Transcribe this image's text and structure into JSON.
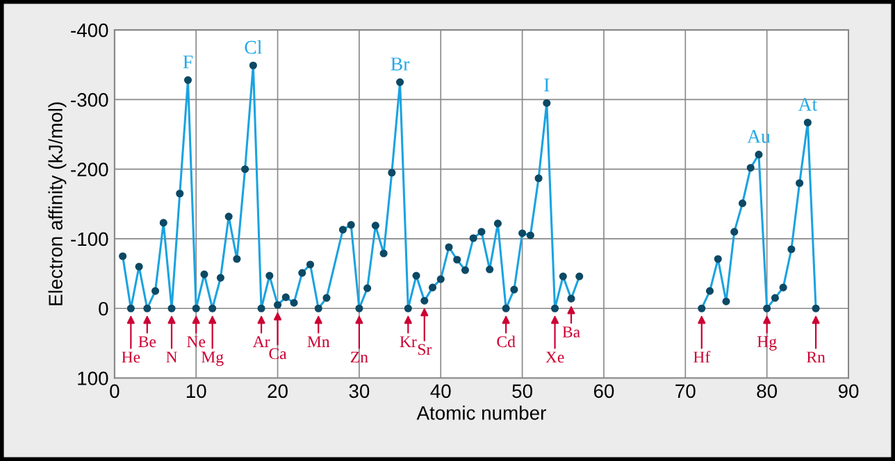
{
  "chart_data": {
    "type": "line",
    "xlabel": "Atomic number",
    "ylabel": "Electron affinity (kJ/mol)",
    "series": [
      {
        "color": "#1aa3e0",
        "x": [
          1,
          2,
          3,
          4,
          5,
          6,
          7,
          8,
          9,
          10,
          11,
          12,
          13,
          14,
          15,
          16,
          17,
          18,
          19,
          20,
          21,
          22,
          23,
          24,
          25,
          26,
          28,
          29,
          30,
          31,
          32,
          33,
          34,
          35,
          36,
          37,
          38,
          39,
          40,
          41,
          42,
          43,
          44,
          45,
          46,
          47,
          48,
          49,
          50,
          51,
          52,
          53,
          54,
          55,
          56,
          57
        ],
        "values": [
          -75,
          0,
          -60,
          0,
          -25,
          -123,
          0,
          -165,
          -328,
          0,
          -49,
          0,
          -44,
          -132,
          -71,
          -200,
          -349,
          0,
          -47,
          -5,
          -16,
          -8,
          -51,
          -63,
          0,
          -15,
          -113,
          -120,
          0,
          -29,
          -119,
          -79,
          -195,
          -325,
          0,
          -47,
          -11,
          -30,
          -42,
          -88,
          -70,
          -55,
          -101,
          -110,
          -56,
          -122,
          0,
          -27,
          -108,
          -105,
          -187,
          -295,
          0,
          -46,
          -14,
          -46
        ]
      },
      {
        "color": "#1aa3e0",
        "x": [
          72,
          73,
          74,
          75,
          76,
          77,
          78,
          79,
          80,
          81,
          82,
          83,
          84,
          85,
          86
        ],
        "values": [
          0,
          -25,
          -71,
          -10,
          -110,
          -151,
          -202,
          -221,
          0,
          -15,
          -30,
          -85,
          -180,
          -267,
          0
        ]
      }
    ],
    "marker": "circle",
    "line_style": "solid",
    "xlim": [
      0,
      90
    ],
    "xticks": [
      0,
      10,
      20,
      30,
      40,
      50,
      60,
      70,
      80,
      90
    ],
    "ylim": [
      100,
      -400
    ],
    "yticks": [
      -400,
      -300,
      -200,
      -100,
      0,
      100
    ],
    "grid": true,
    "legend": false,
    "annotations": [
      {
        "text": "F",
        "x": 9,
        "y": -328
      },
      {
        "text": "Cl",
        "x": 17,
        "y": -349
      },
      {
        "text": "Br",
        "x": 35,
        "y": -325
      },
      {
        "text": "I",
        "x": 53,
        "y": -295
      },
      {
        "text": "Au",
        "x": 79,
        "y": -221
      },
      {
        "text": "At",
        "x": 85,
        "y": -267
      },
      {
        "text": "He",
        "x": 2,
        "y": 0
      },
      {
        "text": "Be",
        "x": 4,
        "y": 0
      },
      {
        "text": "N",
        "x": 7,
        "y": 0
      },
      {
        "text": "Ne",
        "x": 10,
        "y": 0
      },
      {
        "text": "Mg",
        "x": 12,
        "y": 0
      },
      {
        "text": "Ar",
        "x": 18,
        "y": 0
      },
      {
        "text": "Ca",
        "x": 20,
        "y": -5
      },
      {
        "text": "Mn",
        "x": 25,
        "y": 0
      },
      {
        "text": "Zn",
        "x": 30,
        "y": 0
      },
      {
        "text": "Kr",
        "x": 36,
        "y": 0
      },
      {
        "text": "Sr",
        "x": 38,
        "y": -11
      },
      {
        "text": "Cd",
        "x": 48,
        "y": 0
      },
      {
        "text": "Xe",
        "x": 54,
        "y": 0
      },
      {
        "text": "Ba",
        "x": 56,
        "y": -14
      },
      {
        "text": "Hf",
        "x": 72,
        "y": 0
      },
      {
        "text": "Hg",
        "x": 80,
        "y": 0
      },
      {
        "text": "Rn",
        "x": 86,
        "y": 0
      }
    ]
  }
}
